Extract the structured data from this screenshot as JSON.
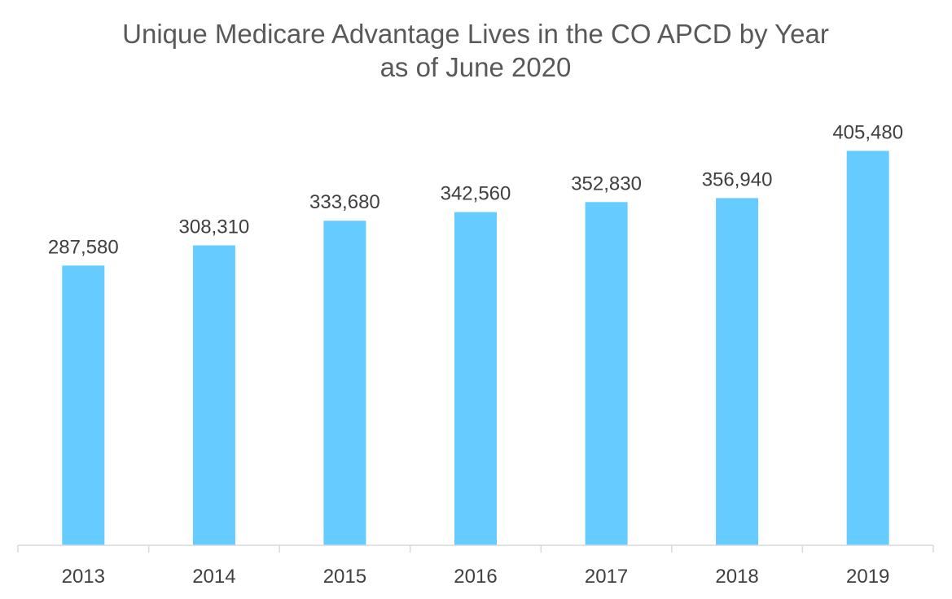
{
  "chart_data": {
    "type": "bar",
    "title": "Unique Medicare Advantage Lives in the CO APCD by Year",
    "subtitle": "as of June 2020",
    "categories": [
      "2013",
      "2014",
      "2015",
      "2016",
      "2017",
      "2018",
      "2019"
    ],
    "values": [
      287580,
      308310,
      333680,
      342560,
      352830,
      356940,
      405480
    ],
    "data_labels": [
      "287,580",
      "308,310",
      "333,680",
      "342,560",
      "352,830",
      "356,940",
      "405,480"
    ],
    "xlabel": "",
    "ylabel": "",
    "ylim": [
      0,
      410000
    ],
    "grid": false,
    "legend": "none",
    "bar_color": "#66CCFF",
    "axis_color": "#D9D9D9"
  }
}
